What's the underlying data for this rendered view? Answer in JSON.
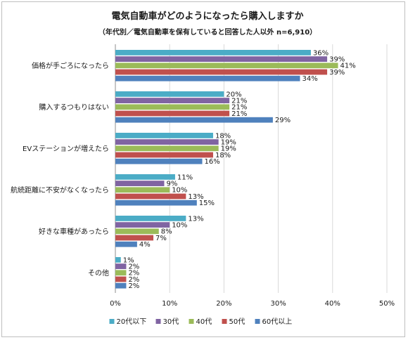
{
  "chart_data": {
    "type": "bar",
    "orientation": "horizontal",
    "title": "電気自動車がどのようになったら購入しますか",
    "subtitle": "（年代別／電気自動車を保有していると回答した人以外 n=6,910）",
    "categories": [
      "価格が手ごろになったら",
      "購入するつもりはない",
      "EVステーションが増えたら",
      "航続距離に不安がなくなったら",
      "好きな車種があったら",
      "その他"
    ],
    "series": [
      {
        "name": "20代以下",
        "color": "#4bacc6",
        "values": [
          36,
          20,
          18,
          11,
          13,
          1
        ]
      },
      {
        "name": "30代",
        "color": "#8064a2",
        "values": [
          39,
          21,
          19,
          9,
          10,
          2
        ]
      },
      {
        "name": "40代",
        "color": "#9bbb59",
        "values": [
          41,
          21,
          19,
          10,
          8,
          2
        ]
      },
      {
        "name": "50代",
        "color": "#c0504d",
        "values": [
          39,
          21,
          18,
          13,
          7,
          2
        ]
      },
      {
        "name": "60代以上",
        "color": "#4f81bd",
        "values": [
          34,
          29,
          16,
          15,
          4,
          2
        ]
      }
    ],
    "xlim": [
      0,
      50
    ],
    "xticks": [
      0,
      10,
      20,
      30,
      40,
      50
    ],
    "value_suffix": "%",
    "grid": true,
    "legend_position": "bottom"
  }
}
